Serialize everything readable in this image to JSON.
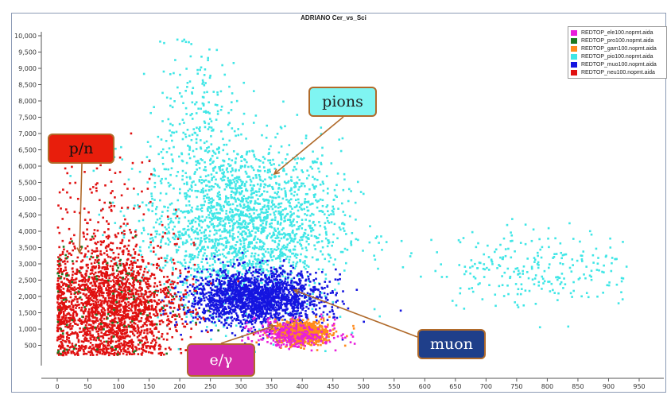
{
  "title": "ADRIANO Cer_vs_Sci",
  "colors": {
    "frame": "#8c9bb5",
    "arrow": "#b06a2a"
  },
  "legend": {
    "items": [
      {
        "label": "REDTOP_ele100.nopmt.aida",
        "color": "#e81edb"
      },
      {
        "label": "REDTOP_pro100.nopmt.aida",
        "color": "#1b7a22"
      },
      {
        "label": "REDTOP_gam100.nopmt.aida",
        "color": "#ff8a1c"
      },
      {
        "label": "REDTOP_pio100.nopmt.aida",
        "color": "#3fe6e6"
      },
      {
        "label": "REDTOP_muo100.nopmt.aida",
        "color": "#1515e0"
      },
      {
        "label": "REDTOP_neu100.nopmt.aida",
        "color": "#e01010"
      }
    ]
  },
  "callouts": {
    "pions": "pions",
    "pn": "p/n",
    "muon": "muon",
    "eg": "e/γ"
  },
  "chart_data": {
    "type": "scatter",
    "title": "ADRIANO Cer_vs_Sci",
    "xlabel": "",
    "ylabel": "",
    "xlim": [
      0,
      960
    ],
    "ylim": [
      0,
      10000
    ],
    "x_ticks": [
      0,
      50,
      100,
      150,
      200,
      250,
      300,
      350,
      400,
      450,
      500,
      550,
      600,
      650,
      700,
      750,
      800,
      850,
      900,
      950
    ],
    "y_ticks": [
      500,
      1000,
      1500,
      2000,
      2500,
      3000,
      3500,
      4000,
      4500,
      5000,
      5500,
      6000,
      6500,
      7000,
      7500,
      8000,
      8500,
      9000,
      9500,
      10000
    ],
    "y_tick_labels": [
      "500",
      "1,000",
      "1,500",
      "2,000",
      "2,500",
      "3,000",
      "3,500",
      "4,000",
      "4,500",
      "5,000",
      "5,500",
      "6,000",
      "6,500",
      "7,000",
      "7,500",
      "8,000",
      "8,500",
      "9,000",
      "9,500",
      "10,000"
    ],
    "grid": false,
    "legend_position": "top-right",
    "series": [
      {
        "name": "REDTOP_pio100.nopmt.aida",
        "color": "#3fe6e6",
        "clusters": [
          {
            "cx": 300,
            "cy": 4200,
            "sx": 80,
            "sy": 1300,
            "n": 2200
          },
          {
            "cx": 230,
            "cy": 7500,
            "sx": 30,
            "sy": 1200,
            "n": 180
          },
          {
            "cx": 780,
            "cy": 2900,
            "sx": 85,
            "sy": 600,
            "n": 260
          }
        ]
      },
      {
        "name": "REDTOP_muo100.nopmt.aida",
        "color": "#1515e0",
        "clusters": [
          {
            "cx": 325,
            "cy": 1950,
            "sx": 55,
            "sy": 420,
            "n": 1900
          }
        ]
      },
      {
        "name": "REDTOP_neu100.nopmt.aida",
        "color": "#e01010",
        "clusters": [
          {
            "cx": 85,
            "cy": 1700,
            "sx": 55,
            "sy": 950,
            "n": 2300
          },
          {
            "cx": 80,
            "cy": 5000,
            "sx": 40,
            "sy": 800,
            "n": 90
          }
        ]
      },
      {
        "name": "REDTOP_pro100.nopmt.aida",
        "color": "#1b7a22",
        "clusters": [
          {
            "cx": 80,
            "cy": 1800,
            "sx": 70,
            "sy": 1200,
            "n": 110
          }
        ]
      },
      {
        "name": "REDTOP_gam100.nopmt.aida",
        "color": "#ff8a1c",
        "clusters": [
          {
            "cx": 400,
            "cy": 880,
            "sx": 22,
            "sy": 170,
            "n": 900
          }
        ]
      },
      {
        "name": "REDTOP_ele100.nopmt.aida",
        "color": "#e81edb",
        "clusters": [
          {
            "cx": 385,
            "cy": 850,
            "sx": 35,
            "sy": 220,
            "n": 260
          }
        ]
      }
    ]
  }
}
